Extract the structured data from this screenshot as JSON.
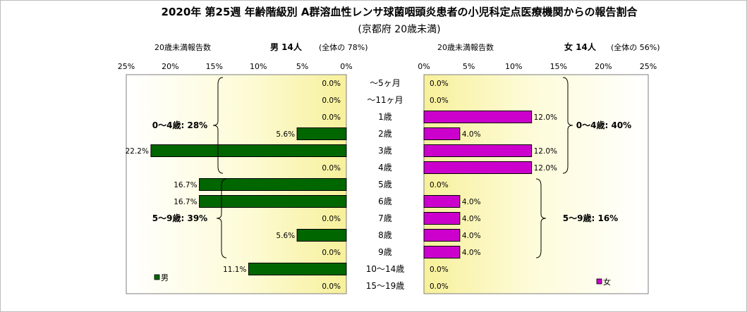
{
  "title": "2020年 第25週 年齢階級別 A群溶血性レンサ球菌咽頭炎患者の小児科定点医療機関からの報告割合",
  "subtitle": "(京都府 20歳未満)",
  "chart_data": {
    "type": "bar",
    "categories": [
      "〜5ヶ月",
      "〜11ヶ月",
      "1歳",
      "2歳",
      "3歳",
      "4歳",
      "5歳",
      "6歳",
      "7歳",
      "8歳",
      "9歳",
      "10〜14歳",
      "15〜19歳"
    ],
    "x_ticks": [
      "0%",
      "5%",
      "10%",
      "15%",
      "20%",
      "25%"
    ],
    "xlim": [
      0,
      25
    ],
    "series": [
      {
        "name": "男",
        "color": "#006600",
        "header_left": "20歳未満報告数",
        "header_main": "男 14人",
        "header_paren": "(全体の 78%)",
        "values": [
          0.0,
          0.0,
          0.0,
          5.6,
          22.2,
          0.0,
          16.7,
          16.7,
          0.0,
          5.6,
          0.0,
          11.1,
          0.0
        ],
        "labels": [
          "0.0%",
          "0.0%",
          "0.0%",
          "5.6%",
          "22.2%",
          "0.0%",
          "16.7%",
          "16.7%",
          "0.0%",
          "5.6%",
          "0.0%",
          "11.1%",
          "0.0%"
        ],
        "groups": [
          {
            "text": "0〜4歳: 28%",
            "start": 0,
            "end": 5
          },
          {
            "text": "5〜9歳: 39%",
            "start": 6,
            "end": 10
          }
        ],
        "legend": "男"
      },
      {
        "name": "女",
        "color": "#cc00cc",
        "header_left": "20歳未満報告数",
        "header_main": "女 14人",
        "header_paren": "(全体の 56%)",
        "values": [
          0.0,
          0.0,
          12.0,
          4.0,
          12.0,
          12.0,
          0.0,
          4.0,
          4.0,
          4.0,
          4.0,
          0.0,
          0.0
        ],
        "labels": [
          "0.0%",
          "0.0%",
          "12.0%",
          "4.0%",
          "12.0%",
          "12.0%",
          "0.0%",
          "4.0%",
          "4.0%",
          "4.0%",
          "4.0%",
          "0.0%",
          "0.0%"
        ],
        "groups": [
          {
            "text": "0〜4歳: 40%",
            "start": 0,
            "end": 5
          },
          {
            "text": "5〜9歳: 16%",
            "start": 6,
            "end": 10
          }
        ],
        "legend": "女"
      }
    ],
    "background": "yellow-gradient",
    "grid": false
  }
}
